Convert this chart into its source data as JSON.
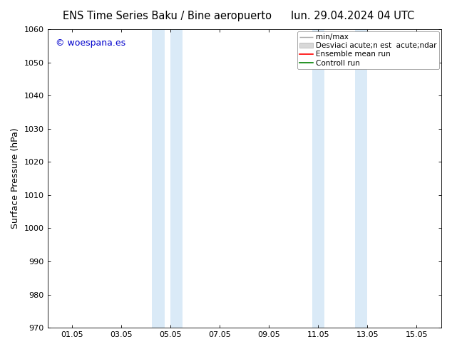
{
  "title_left": "ENS Time Series Baku / Bine aeropuerto",
  "title_right": "lun. 29.04.2024 04 UTC",
  "ylabel": "Surface Pressure (hPa)",
  "xlabel": "",
  "ylim": [
    970,
    1060
  ],
  "xlim": [
    0.0,
    16.0
  ],
  "yticks": [
    970,
    980,
    990,
    1000,
    1010,
    1020,
    1030,
    1040,
    1050,
    1060
  ],
  "xtick_positions": [
    1,
    3,
    5,
    7,
    9,
    11,
    13,
    15
  ],
  "xtick_labels": [
    "01.05",
    "03.05",
    "05.05",
    "07.05",
    "09.05",
    "11.05",
    "13.05",
    "15.05"
  ],
  "shaded_bands": [
    {
      "xmin": 4.25,
      "xmax": 4.75,
      "color": "#daeaf7"
    },
    {
      "xmin": 5.0,
      "xmax": 5.5,
      "color": "#daeaf7"
    },
    {
      "xmin": 10.75,
      "xmax": 11.25,
      "color": "#daeaf7"
    },
    {
      "xmin": 12.5,
      "xmax": 13.0,
      "color": "#daeaf7"
    }
  ],
  "watermark_text": "© woespana.es",
  "watermark_color": "#0000cc",
  "legend_label_minmax": "min/max",
  "legend_label_std": "Desviaci acute;n est  acute;ndar",
  "legend_label_ens": "Ensemble mean run",
  "legend_label_ctrl": "Controll run",
  "legend_color_minmax": "#aaaaaa",
  "legend_color_std": "#cccccc",
  "legend_color_ens": "#ff0000",
  "legend_color_ctrl": "#008000",
  "bg_color": "#ffffff",
  "plot_bg_color": "#ffffff",
  "title_fontsize": 10.5,
  "axis_label_fontsize": 9,
  "tick_fontsize": 8,
  "legend_fontsize": 7.5,
  "watermark_fontsize": 9
}
